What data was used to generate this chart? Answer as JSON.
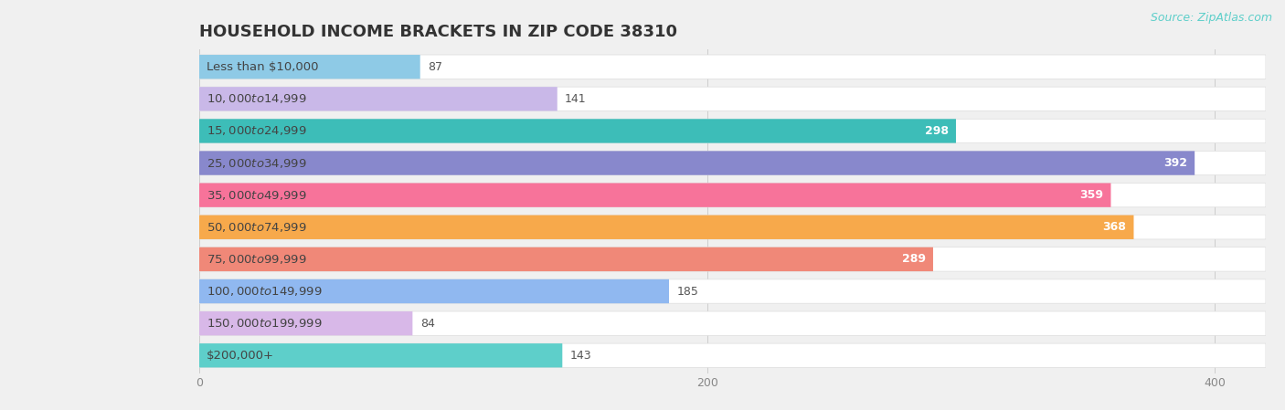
{
  "title": "HOUSEHOLD INCOME BRACKETS IN ZIP CODE 38310",
  "source": "Source: ZipAtlas.com",
  "categories": [
    "Less than $10,000",
    "$10,000 to $14,999",
    "$15,000 to $24,999",
    "$25,000 to $34,999",
    "$35,000 to $49,999",
    "$50,000 to $74,999",
    "$75,000 to $99,999",
    "$100,000 to $149,999",
    "$150,000 to $199,999",
    "$200,000+"
  ],
  "values": [
    87,
    141,
    298,
    392,
    359,
    368,
    289,
    185,
    84,
    143
  ],
  "bar_colors": [
    "#8ecae6",
    "#c9b8e8",
    "#3dbdb8",
    "#8888cc",
    "#f7739a",
    "#f7a94b",
    "#f08878",
    "#90b8f0",
    "#d8b8e8",
    "#5ecfca"
  ],
  "xlim_max": 420,
  "background_color": "#f0f0f0",
  "bar_bg_color": "#ffffff",
  "title_fontsize": 13,
  "label_fontsize": 9.5,
  "value_fontsize": 9,
  "source_fontsize": 9,
  "source_color": "#5ecfca"
}
